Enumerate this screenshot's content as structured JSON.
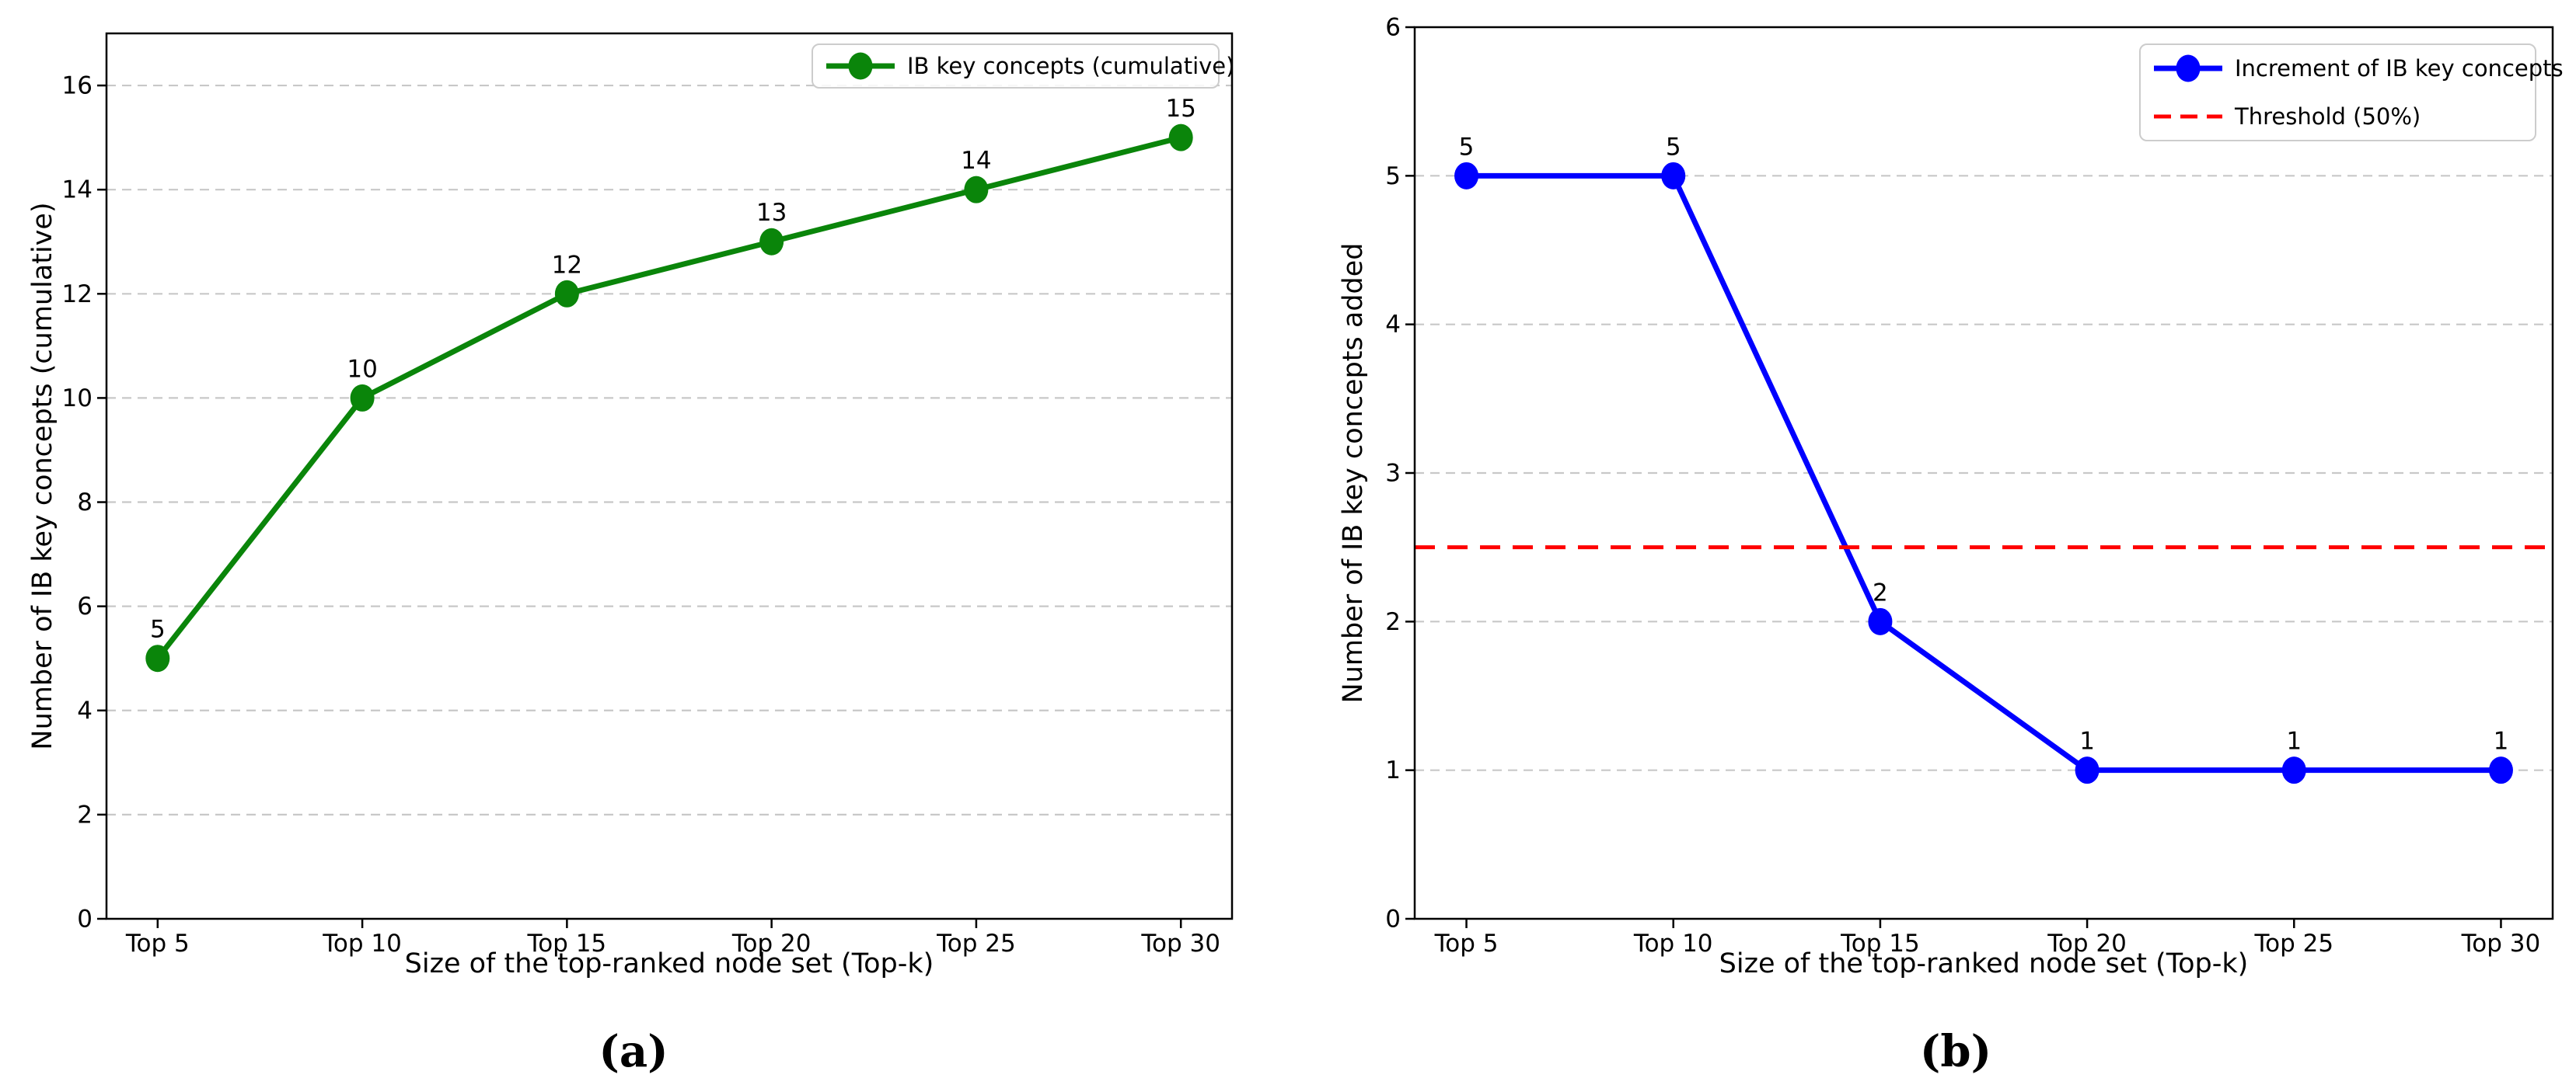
{
  "figure": {
    "background": "#ffffff",
    "captions": {
      "a": "(a)",
      "b": "(b)"
    }
  },
  "chart_data": [
    {
      "type": "line",
      "panel": "a",
      "title": "",
      "xlabel": "Size of the top-ranked node set (Top-k)",
      "ylabel": "Number of IB key concepts (cumulative)",
      "categories": [
        "Top 5",
        "Top 10",
        "Top 15",
        "Top 20",
        "Top 25",
        "Top 30"
      ],
      "series": [
        {
          "name": "IB key concepts (cumulative)",
          "type": "line-marker",
          "color": "#0a850a",
          "values": [
            5,
            10,
            12,
            13,
            14,
            15
          ],
          "annotations": [
            "5",
            "10",
            "12",
            "13",
            "14",
            "15"
          ]
        }
      ],
      "ylim": [
        0,
        17
      ],
      "yticks": [
        0,
        2,
        4,
        6,
        8,
        10,
        12,
        14,
        16
      ],
      "grid": "y-dashed",
      "grid_color": "#c8c8c8",
      "legend": {
        "position": "upper right",
        "entries": [
          {
            "label": "IB key concepts (cumulative)",
            "color": "#0a850a",
            "style": "line-marker"
          }
        ]
      }
    },
    {
      "type": "line",
      "panel": "b",
      "title": "",
      "xlabel": "Size of the top-ranked node set (Top-k)",
      "ylabel": "Number of IB key concepts added",
      "categories": [
        "Top 5",
        "Top 10",
        "Top 15",
        "Top 20",
        "Top 25",
        "Top 30"
      ],
      "series": [
        {
          "name": "Increment of IB key concepts",
          "type": "line-marker",
          "color": "#0000ff",
          "values": [
            5,
            5,
            2,
            1,
            1,
            1
          ],
          "annotations": [
            "5",
            "5",
            "2",
            "1",
            "1",
            "1"
          ]
        },
        {
          "name": "Threshold (50%)",
          "type": "hline-dashed",
          "color": "#ff0000",
          "y": 2.5
        }
      ],
      "ylim": [
        0,
        6
      ],
      "yticks": [
        0,
        1,
        2,
        3,
        4,
        5,
        6
      ],
      "grid": "y-dashed",
      "grid_color": "#c8c8c8",
      "legend": {
        "position": "upper right",
        "entries": [
          {
            "label": "Increment of IB key concepts",
            "color": "#0000ff",
            "style": "line-marker"
          },
          {
            "label": "Threshold (50%)",
            "color": "#ff0000",
            "style": "dashed"
          }
        ]
      }
    }
  ]
}
